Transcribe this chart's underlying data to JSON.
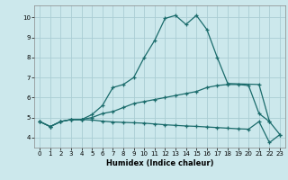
{
  "background_color": "#cce8ec",
  "grid_color": "#aacdd4",
  "line_color": "#1a6b6b",
  "xlabel": "Humidex (Indice chaleur)",
  "xlim": [
    -0.5,
    23.5
  ],
  "ylim": [
    3.5,
    10.6
  ],
  "xticks": [
    0,
    1,
    2,
    3,
    4,
    5,
    6,
    7,
    8,
    9,
    10,
    11,
    12,
    13,
    14,
    15,
    16,
    17,
    18,
    19,
    20,
    21,
    22,
    23
  ],
  "yticks": [
    4,
    5,
    6,
    7,
    8,
    9,
    10
  ],
  "curve1": {
    "x": [
      0,
      1,
      2,
      3,
      4,
      5,
      6,
      7,
      8,
      9,
      10,
      11,
      12,
      13,
      14,
      15,
      16,
      17,
      18,
      21,
      22
    ],
    "y": [
      4.8,
      4.55,
      4.8,
      4.9,
      4.9,
      5.15,
      5.6,
      6.5,
      6.65,
      7.0,
      8.0,
      8.85,
      9.95,
      10.1,
      9.65,
      10.1,
      9.4,
      8.0,
      6.7,
      6.65,
      4.8
    ]
  },
  "curve2": {
    "x": [
      0,
      1,
      2,
      3,
      4,
      5,
      6,
      7,
      8,
      9,
      10,
      11,
      12,
      13,
      14,
      15,
      16,
      17,
      18,
      19,
      20,
      21,
      22,
      23
    ],
    "y": [
      4.8,
      4.55,
      4.8,
      4.9,
      4.9,
      5.0,
      5.2,
      5.3,
      5.5,
      5.7,
      5.8,
      5.9,
      6.0,
      6.1,
      6.2,
      6.3,
      6.5,
      6.6,
      6.65,
      6.65,
      6.6,
      5.2,
      4.8,
      4.15
    ]
  },
  "curve3": {
    "x": [
      0,
      1,
      2,
      3,
      4,
      5,
      6,
      7,
      8,
      9,
      10,
      11,
      12,
      13,
      14,
      15,
      16,
      17,
      18,
      19,
      20,
      21,
      22,
      23
    ],
    "y": [
      4.8,
      4.55,
      4.8,
      4.9,
      4.9,
      4.88,
      4.82,
      4.78,
      4.76,
      4.74,
      4.72,
      4.68,
      4.64,
      4.61,
      4.58,
      4.56,
      4.53,
      4.5,
      4.47,
      4.44,
      4.42,
      4.8,
      3.75,
      4.15
    ]
  }
}
